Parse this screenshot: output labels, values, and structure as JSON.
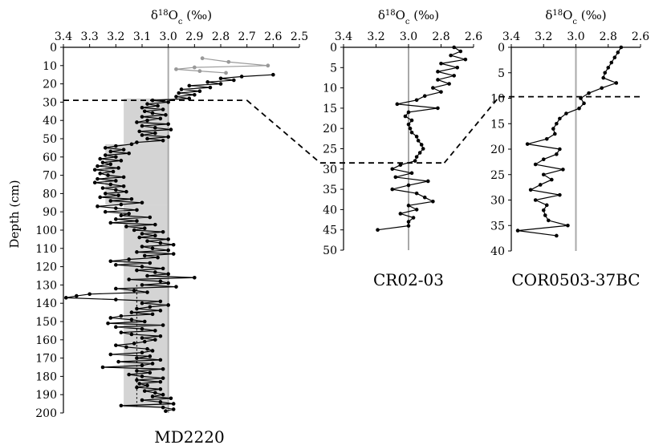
{
  "chart_data": [
    {
      "type": "line",
      "caption": "MD2220",
      "xlabel": "δ18Oc (‰)",
      "ylabel": "Depth (cm)",
      "x_axis": {
        "reversed": true,
        "lim": [
          3.4,
          2.5
        ],
        "ticks": [
          "3.4",
          "3.3",
          "3.2",
          "3.1",
          "3.0",
          "2.9",
          "2.8",
          "2.7",
          "2.6",
          "2.5"
        ],
        "position": "top"
      },
      "y_axis": {
        "reversed": true,
        "lim": [
          0,
          200
        ],
        "ticks": [
          "0",
          "10",
          "20",
          "30",
          "40",
          "50",
          "60",
          "70",
          "80",
          "90",
          "100",
          "110",
          "120",
          "130",
          "140",
          "150",
          "160",
          "170",
          "180",
          "190",
          "200"
        ]
      },
      "reference_line": 3.0,
      "dashed_horizon": 29,
      "shaded_band": [
        {
          "x_from": 3.17,
          "x_to": 3.0,
          "y_from": 28,
          "y_to": 53
        },
        {
          "x_from": 3.24,
          "x_to": 3.0,
          "y_from": 53,
          "y_to": 86
        },
        {
          "x_from": 3.17,
          "x_to": 3.0,
          "y_from": 86,
          "y_to": 197
        }
      ],
      "mean_dotted": {
        "x": 3.12,
        "y_from": 130,
        "y_to": 197
      },
      "grey_series": {
        "depth": [
          6,
          8,
          10,
          11,
          12,
          13,
          14
        ],
        "value": [
          2.87,
          2.77,
          2.62,
          2.9,
          2.97,
          2.88,
          2.78
        ]
      },
      "series": {
        "depth": [
          15,
          16,
          17,
          18,
          19,
          20,
          21,
          22,
          23,
          24,
          25,
          26,
          27,
          28,
          29,
          30,
          31,
          32,
          33,
          34,
          35,
          36,
          37,
          38,
          39,
          40,
          41,
          42,
          43,
          44,
          45,
          46,
          47,
          48,
          49,
          50,
          51,
          52,
          53,
          54,
          55,
          56,
          57,
          58,
          59,
          60,
          61,
          62,
          63,
          64,
          65,
          66,
          67,
          68,
          69,
          70,
          71,
          72,
          73,
          74,
          75,
          76,
          77,
          78,
          79,
          80,
          81,
          82,
          83,
          84,
          85,
          86,
          87,
          88,
          89,
          90,
          91,
          92,
          93,
          94,
          95,
          96,
          97,
          98,
          99,
          100,
          101,
          102,
          103,
          104,
          105,
          106,
          107,
          108,
          109,
          110,
          111,
          112,
          113,
          114,
          115,
          116,
          117,
          118,
          119,
          120,
          121,
          122,
          123,
          124,
          125,
          126,
          127,
          128,
          129,
          130,
          131,
          132,
          133,
          134,
          135,
          136,
          137,
          138,
          139,
          140,
          141,
          142,
          143,
          144,
          145,
          146,
          147,
          148,
          149,
          150,
          151,
          152,
          153,
          154,
          155,
          156,
          157,
          158,
          159,
          160,
          161,
          162,
          163,
          164,
          165,
          166,
          167,
          168,
          169,
          170,
          171,
          172,
          173,
          174,
          175,
          176,
          177,
          178,
          179,
          180,
          181,
          182,
          183,
          184,
          185,
          186,
          187,
          188,
          189,
          190,
          191,
          192,
          193,
          194,
          195,
          196,
          197,
          198,
          199
        ],
        "value": [
          2.6,
          2.72,
          2.8,
          2.75,
          2.85,
          2.8,
          2.92,
          2.84,
          2.95,
          2.88,
          2.96,
          2.9,
          2.97,
          2.92,
          3.06,
          3.0,
          3.08,
          3.04,
          3.1,
          3.02,
          3.09,
          3.06,
          3.01,
          3.1,
          3.03,
          3.08,
          3.12,
          3.0,
          3.1,
          3.05,
          2.99,
          3.11,
          3.05,
          3.1,
          3.0,
          3.08,
          3.02,
          3.12,
          3.14,
          3.2,
          3.24,
          3.17,
          3.22,
          3.15,
          3.24,
          3.2,
          3.26,
          3.18,
          3.25,
          3.22,
          3.27,
          3.19,
          3.28,
          3.21,
          3.26,
          3.23,
          3.17,
          3.27,
          3.2,
          3.28,
          3.22,
          3.17,
          3.25,
          3.2,
          3.16,
          3.24,
          3.19,
          3.26,
          3.14,
          3.22,
          3.1,
          3.18,
          3.27,
          3.2,
          3.12,
          3.24,
          3.15,
          3.18,
          3.07,
          3.2,
          3.12,
          3.22,
          3.05,
          3.16,
          3.09,
          3.13,
          3.02,
          3.1,
          3.05,
          3.11,
          3.0,
          3.08,
          3.03,
          2.98,
          3.1,
          3.06,
          3.0,
          3.12,
          2.98,
          3.09,
          3.04,
          3.15,
          3.22,
          3.07,
          3.2,
          3.1,
          3.02,
          3.12,
          3.05,
          3.0,
          3.08,
          2.9,
          3.15,
          3.03,
          3.0,
          3.1,
          2.97,
          3.2,
          3.13,
          3.08,
          3.3,
          3.35,
          3.39,
          3.2,
          3.03,
          3.1,
          3.0,
          3.07,
          3.12,
          3.03,
          3.14,
          3.06,
          3.18,
          3.22,
          3.14,
          3.09,
          3.23,
          3.02,
          3.2,
          3.1,
          3.05,
          3.18,
          3.14,
          3.03,
          3.1,
          3.05,
          3.09,
          3.13,
          3.2,
          3.16,
          3.08,
          3.06,
          3.1,
          3.22,
          3.07,
          3.12,
          3.03,
          3.19,
          3.06,
          3.1,
          3.25,
          3.02,
          3.12,
          3.07,
          3.15,
          3.1,
          3.02,
          3.12,
          3.03,
          3.11,
          3.08,
          3.12,
          3.03,
          3.09,
          3.05,
          3.02,
          3.06,
          2.99,
          3.1,
          3.03,
          2.98,
          3.18,
          3.02,
          2.98,
          3.01,
          3.05,
          3.12
        ]
      }
    },
    {
      "type": "line",
      "caption": "CR02-03",
      "xlabel": "δ18Oc (‰)",
      "x_axis": {
        "reversed": true,
        "lim": [
          3.4,
          2.6
        ],
        "ticks": [
          "3.4",
          "3.2",
          "3.0",
          "2.8",
          "2.6"
        ],
        "position": "top"
      },
      "y_axis": {
        "reversed": true,
        "lim": [
          0,
          50
        ],
        "ticks": [
          "0",
          "5",
          "10",
          "15",
          "20",
          "25",
          "30",
          "35",
          "40",
          "45",
          "50"
        ]
      },
      "reference_line": 3.0,
      "dashed_horizon": 28.5,
      "series": {
        "depth": [
          0,
          1,
          2,
          3,
          4,
          5,
          6,
          7,
          8,
          9,
          10,
          11,
          12,
          13,
          14,
          15,
          16,
          17,
          18,
          19,
          20,
          21,
          22,
          23,
          24,
          25,
          26,
          27,
          28,
          29,
          30,
          31,
          32,
          33,
          34,
          35,
          36,
          37,
          38,
          39,
          40,
          41,
          42,
          43,
          44,
          45
        ],
        "value": [
          2.72,
          2.68,
          2.74,
          2.65,
          2.8,
          2.7,
          2.82,
          2.72,
          2.82,
          2.75,
          2.85,
          2.8,
          2.9,
          2.95,
          3.07,
          2.82,
          3.0,
          3.02,
          2.98,
          3.0,
          2.99,
          2.98,
          2.95,
          2.94,
          2.92,
          2.91,
          2.93,
          2.95,
          2.96,
          3.05,
          3.1,
          2.98,
          3.08,
          2.88,
          3.0,
          3.1,
          2.95,
          2.9,
          2.85,
          3.0,
          2.95,
          3.05,
          2.97,
          3.0,
          3.0,
          3.19
        ]
      }
    },
    {
      "type": "line",
      "caption": "COR0503-37BC",
      "xlabel": "δ18Oc (‰)",
      "x_axis": {
        "reversed": true,
        "lim": [
          3.4,
          2.6
        ],
        "ticks": [
          "3.4",
          "3.2",
          "3.0",
          "2.8",
          "2.6"
        ],
        "position": "top"
      },
      "y_axis": {
        "reversed": true,
        "lim": [
          0,
          40
        ],
        "ticks": [
          "0",
          "5",
          "10",
          "15",
          "20",
          "25",
          "30",
          "35",
          "40"
        ]
      },
      "reference_line": 3.0,
      "dashed_horizon": 9.7,
      "series": {
        "depth": [
          0,
          1,
          2,
          3,
          4,
          5,
          6,
          7,
          8,
          9,
          10,
          11,
          12,
          13,
          14,
          15,
          16,
          17,
          18,
          19,
          20,
          21,
          22,
          23,
          24,
          25,
          26,
          27,
          28,
          29,
          30,
          31,
          32,
          33,
          34,
          35,
          36,
          37
        ],
        "value": [
          2.72,
          2.74,
          2.76,
          2.78,
          2.8,
          2.82,
          2.83,
          2.75,
          2.84,
          2.92,
          2.97,
          2.95,
          2.98,
          3.06,
          3.1,
          3.12,
          3.14,
          3.13,
          3.18,
          3.3,
          3.1,
          3.12,
          3.2,
          3.25,
          3.08,
          3.2,
          3.15,
          3.22,
          3.28,
          3.1,
          3.25,
          3.18,
          3.2,
          3.19,
          3.17,
          3.05,
          3.36,
          3.12
        ]
      }
    }
  ]
}
